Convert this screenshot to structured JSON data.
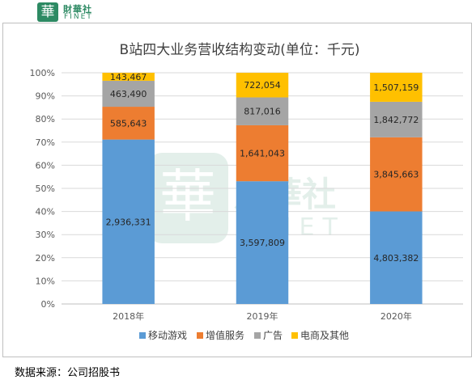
{
  "logo": {
    "cn": "財華社",
    "en": "FINET",
    "mark": "華"
  },
  "watermark": {
    "cn": "財華社",
    "en": "FINET"
  },
  "source": "数据来源：公司招股书",
  "colors": {
    "移动游戏": "#5b9bd5",
    "增值服务": "#ed7d31",
    "广告": "#a5a5a5",
    "电商及其他": "#ffc000"
  },
  "chart_data": {
    "type": "bar",
    "stacked": "percent",
    "title": "B站四大业务营收结构变动(单位：千元)",
    "categories": [
      "2018年",
      "2019年",
      "2020年"
    ],
    "series": [
      {
        "name": "移动游戏",
        "values": [
          2936331,
          3597809,
          4803382
        ],
        "labels": [
          "2,936,331",
          "3,597,809",
          "4,803,382"
        ]
      },
      {
        "name": "增值服务",
        "values": [
          585643,
          1641043,
          3845663
        ],
        "labels": [
          "585,643",
          "1,641,043",
          "3,845,663"
        ]
      },
      {
        "name": "广告",
        "values": [
          463490,
          817016,
          1842772
        ],
        "labels": [
          "463,490",
          "817,016",
          "1,842,772"
        ]
      },
      {
        "name": "电商及其他",
        "values": [
          143467,
          722054,
          1507159
        ],
        "labels": [
          "143,467",
          "722,054",
          "1,507,159"
        ]
      }
    ],
    "y_ticks": [
      "0%",
      "10%",
      "20%",
      "30%",
      "40%",
      "50%",
      "60%",
      "70%",
      "80%",
      "90%",
      "100%"
    ],
    "ylim": [
      0,
      100
    ],
    "grid": true,
    "legend": "bottom"
  }
}
